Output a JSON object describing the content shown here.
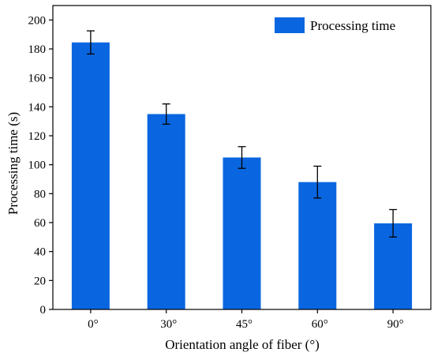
{
  "chart_data": {
    "type": "bar",
    "categories": [
      "0°",
      "30°",
      "45°",
      "60°",
      "90°"
    ],
    "values": [
      184.5,
      135,
      105,
      88,
      59.5
    ],
    "errors": [
      8,
      7,
      7.5,
      11,
      9.5
    ],
    "xlabel": "Orientation angle of fiber (°)",
    "ylabel": "Processing time (s)",
    "ylim": [
      0,
      210
    ],
    "yticks": [
      0,
      20,
      40,
      60,
      80,
      100,
      120,
      140,
      160,
      180,
      200
    ],
    "grid": false,
    "legend": {
      "position": "top-right",
      "entries": [
        "Processing time"
      ]
    },
    "series": [
      {
        "name": "Processing time",
        "color": "#0a66e0"
      }
    ]
  }
}
